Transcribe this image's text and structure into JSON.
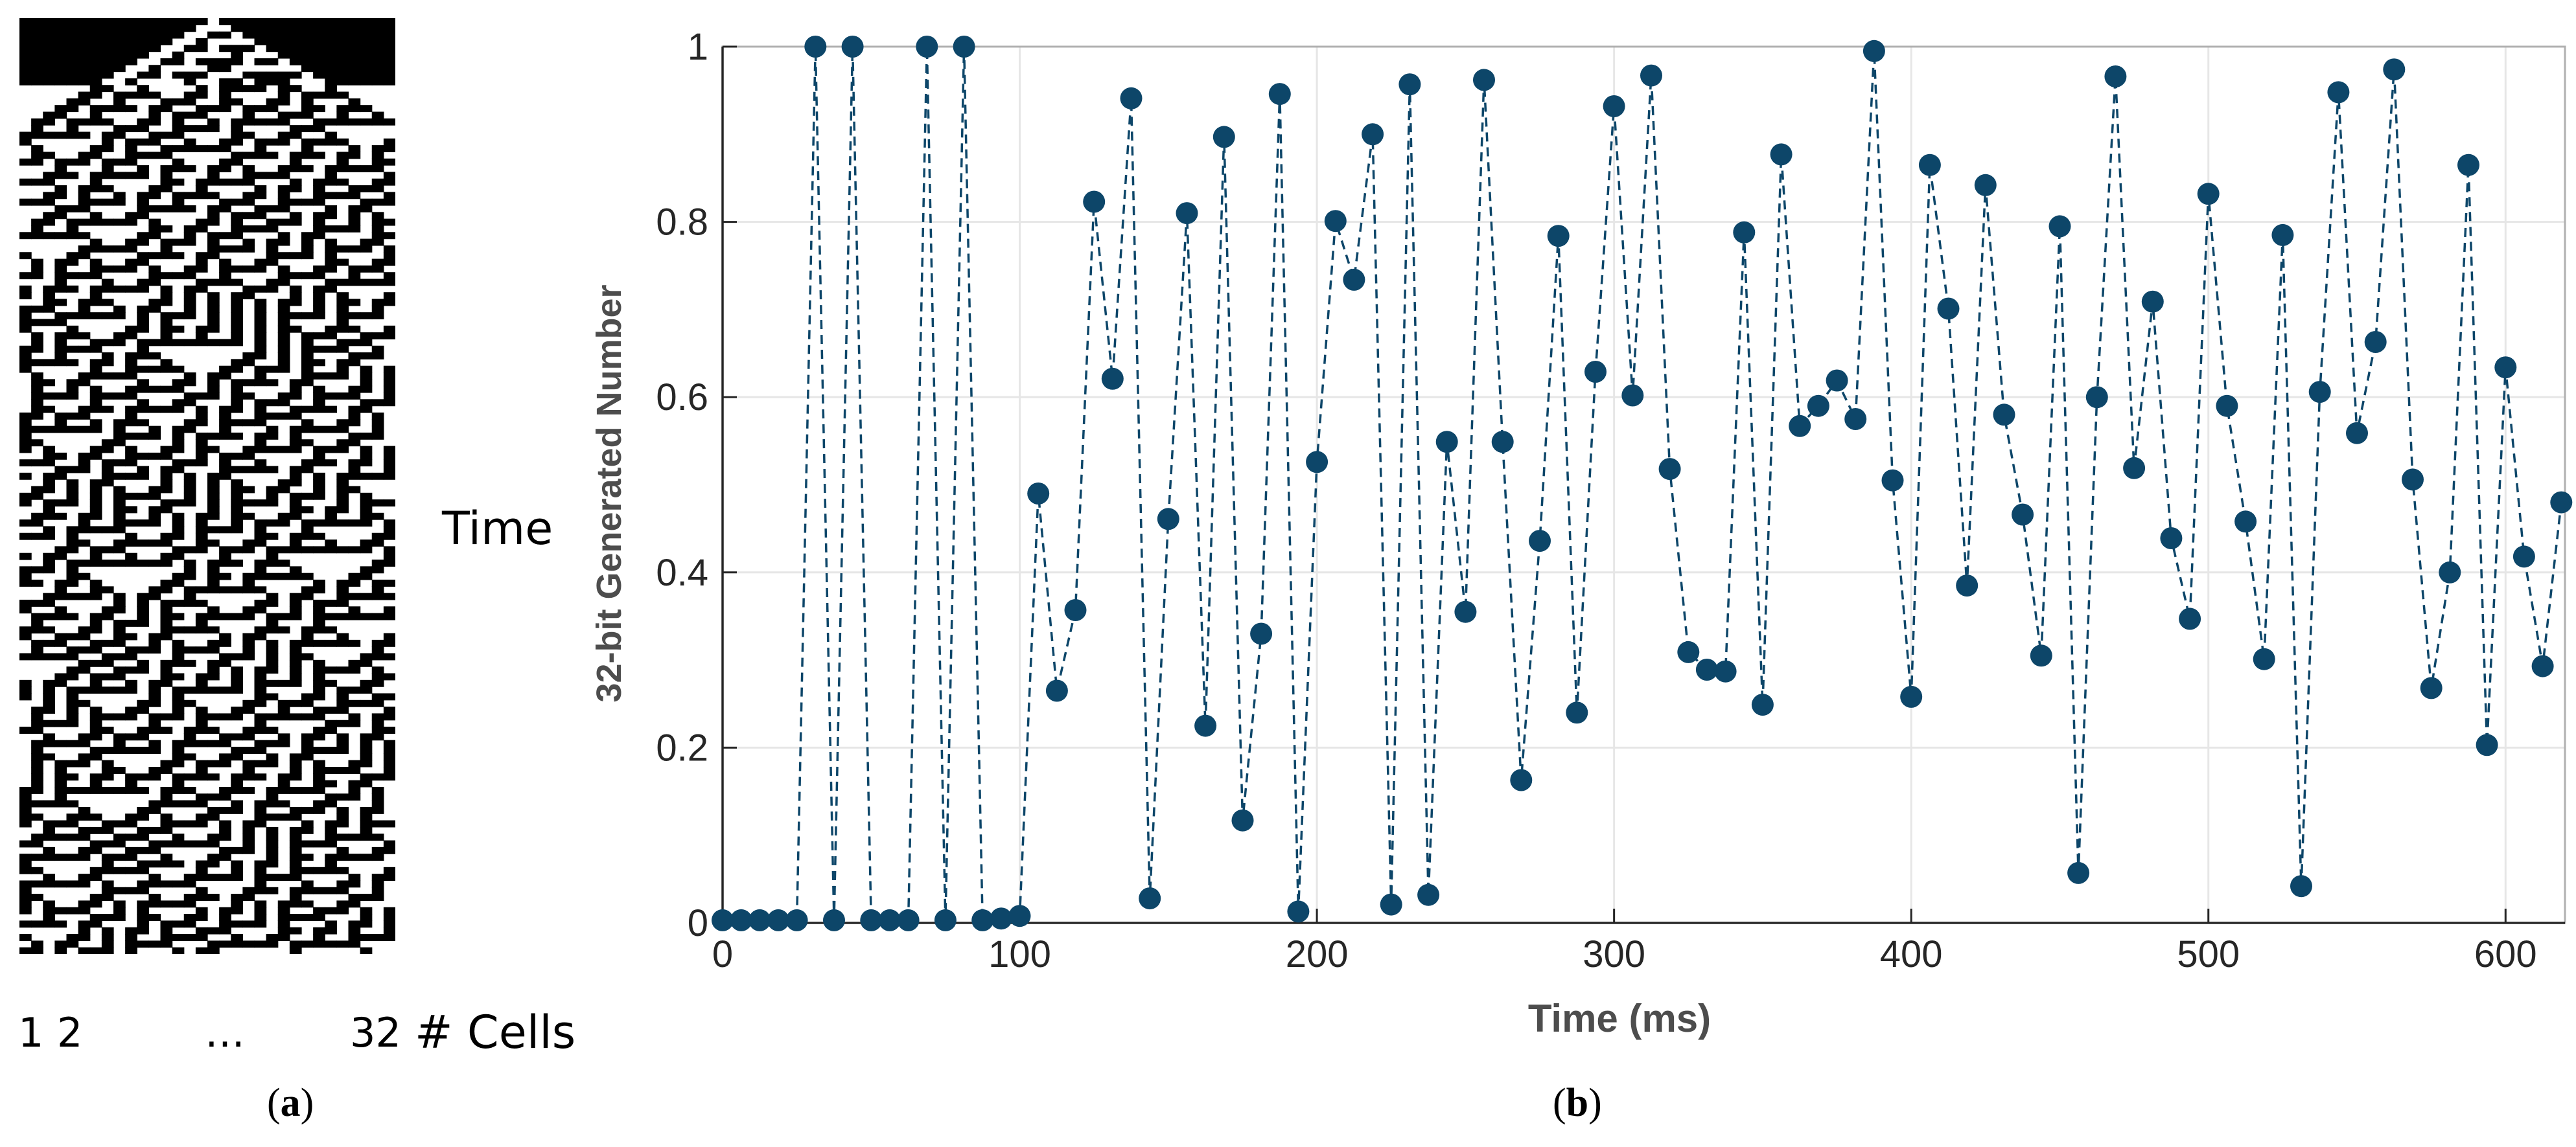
{
  "panel_a": {
    "time_label": "Time",
    "cell_first": "1",
    "cell_second": "2",
    "cell_ellipsis": "…",
    "cell_last": "32",
    "cells_label": "# Cells",
    "panel_label_open": "(",
    "panel_letter": "a",
    "panel_label_close": ")",
    "num_cells": 32,
    "num_steps": 140
  },
  "panel_b": {
    "panel_label_open": "(",
    "panel_letter": "b",
    "panel_label_close": ")"
  },
  "chart_data": {
    "type": "line",
    "title": "",
    "xlabel": "Time (ms)",
    "ylabel": "32-bit Generated Number",
    "xlim": [
      0,
      620
    ],
    "ylim": [
      0,
      1
    ],
    "xticks": [
      0,
      100,
      200,
      300,
      400,
      500,
      600
    ],
    "xtick_labels": [
      "0",
      "100",
      "200",
      "300",
      "400",
      "500",
      "600"
    ],
    "yticks": [
      0,
      0.2,
      0.4,
      0.6,
      0.8,
      1
    ],
    "ytick_labels": [
      "0",
      "0.2",
      "0.4",
      "0.6",
      "0.8",
      "1"
    ],
    "grid": true,
    "line_style": "dashed",
    "marker": "circle",
    "color": "#0d4669",
    "series": [
      {
        "x": [
          0,
          6.25,
          12.5,
          18.75,
          25,
          31.25,
          37.5,
          43.75,
          50,
          56.25,
          62.5,
          68.75,
          75,
          81.25,
          87.5,
          93.75,
          100,
          106.25,
          112.5,
          118.75,
          125,
          131.25,
          137.5,
          143.75,
          150,
          156.25,
          162.5,
          168.75,
          175,
          181.25,
          187.5,
          193.75,
          200,
          206.25,
          212.5,
          218.75,
          225,
          231.25,
          237.5,
          243.75,
          250,
          256.25,
          262.5,
          268.75,
          275,
          281.25,
          287.5,
          293.75,
          300,
          306.25,
          312.5,
          318.75,
          325,
          331.25,
          337.5,
          343.75,
          350,
          356.25,
          362.5,
          368.75,
          375,
          381.25,
          387.5,
          393.75,
          400,
          406.25,
          412.5,
          418.75,
          425,
          431.25,
          437.5,
          443.75,
          450,
          456.25,
          462.5,
          468.75,
          475,
          481.25,
          487.5,
          493.75,
          500,
          506.25,
          512.5,
          518.75,
          525,
          531.25,
          537.5,
          543.75,
          550,
          556.25,
          562.5,
          568.75,
          575,
          581.25,
          587.5,
          593.75,
          600,
          606.25,
          612.5,
          618.75
        ],
        "y": [
          0.003,
          0.003,
          0.003,
          0.003,
          0.003,
          1.0,
          0.003,
          1.0,
          0.003,
          0.003,
          0.003,
          1.0,
          0.003,
          1.0,
          0.003,
          0.005,
          0.008,
          0.49,
          0.265,
          0.357,
          0.823,
          0.621,
          0.941,
          0.028,
          0.461,
          0.81,
          0.225,
          0.897,
          0.117,
          0.33,
          0.946,
          0.013,
          0.526,
          0.801,
          0.734,
          0.9,
          0.021,
          0.957,
          0.032,
          0.549,
          0.355,
          0.962,
          0.549,
          0.163,
          0.436,
          0.784,
          0.24,
          0.629,
          0.932,
          0.602,
          0.967,
          0.518,
          0.309,
          0.289,
          0.287,
          0.788,
          0.249,
          0.877,
          0.567,
          0.59,
          0.619,
          0.575,
          0.995,
          0.505,
          0.258,
          0.865,
          0.701,
          0.385,
          0.842,
          0.58,
          0.466,
          0.305,
          0.795,
          0.057,
          0.6,
          0.966,
          0.519,
          0.709,
          0.439,
          0.347,
          0.832,
          0.59,
          0.458,
          0.301,
          0.785,
          0.042,
          0.606,
          0.948,
          0.559,
          0.663,
          0.974,
          0.506,
          0.268,
          0.4,
          0.865,
          0.203,
          0.634,
          0.418,
          0.293,
          0.48
        ]
      }
    ]
  }
}
